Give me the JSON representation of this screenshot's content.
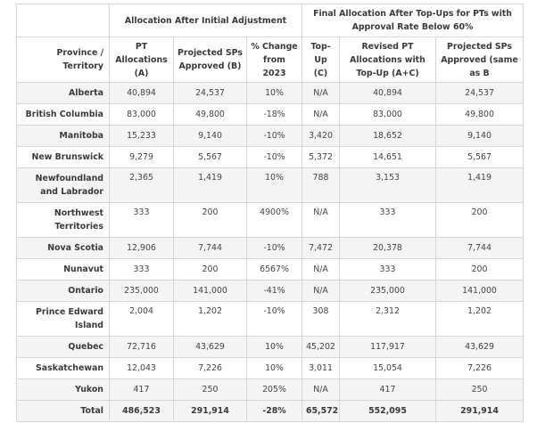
{
  "table": {
    "group_headers": {
      "initial": "Allocation After Initial Adjustment",
      "final": "Final Allocation After Top-Ups for PTs with Approval Rate Below 60%"
    },
    "columns": [
      "Province / Territory",
      "PT Allocations (A)",
      "Projected SPs Approved (B)",
      "% Change from 2023",
      "Top-Up (C)",
      "Revised PT Allocations with Top-Up (A+C)",
      "Projected SPs Approved (same as B"
    ],
    "rows": [
      {
        "province": "Alberta",
        "pt_alloc": "40,894",
        "projected": "24,537",
        "change": "10%",
        "topup": "N/A",
        "revised": "40,894",
        "projected_same": "24,537"
      },
      {
        "province": "British Columbia",
        "pt_alloc": "83,000",
        "projected": "49,800",
        "change": "-18%",
        "topup": "N/A",
        "revised": "83,000",
        "projected_same": "49,800"
      },
      {
        "province": "Manitoba",
        "pt_alloc": "15,233",
        "projected": "9,140",
        "change": "-10%",
        "topup": "3,420",
        "revised": "18,652",
        "projected_same": "9,140"
      },
      {
        "province": "New Brunswick",
        "pt_alloc": "9,279",
        "projected": "5,567",
        "change": "-10%",
        "topup": "5,372",
        "revised": "14,651",
        "projected_same": "5,567"
      },
      {
        "province": "Newfoundland and Labrador",
        "pt_alloc": "2,365",
        "projected": "1,419",
        "change": "10%",
        "topup": "788",
        "revised": "3,153",
        "projected_same": "1,419"
      },
      {
        "province": "Northwest Territories",
        "pt_alloc": "333",
        "projected": "200",
        "change": "4900%",
        "topup": "N/A",
        "revised": "333",
        "projected_same": "200"
      },
      {
        "province": "Nova Scotia",
        "pt_alloc": "12,906",
        "projected": "7,744",
        "change": "-10%",
        "topup": "7,472",
        "revised": "20,378",
        "projected_same": "7,744"
      },
      {
        "province": "Nunavut",
        "pt_alloc": "333",
        "projected": "200",
        "change": "6567%",
        "topup": "N/A",
        "revised": "333",
        "projected_same": "200"
      },
      {
        "province": "Ontario",
        "pt_alloc": "235,000",
        "projected": "141,000",
        "change": "-41%",
        "topup": "N/A",
        "revised": "235,000",
        "projected_same": "141,000"
      },
      {
        "province": "Prince Edward Island",
        "pt_alloc": "2,004",
        "projected": "1,202",
        "change": "-10%",
        "topup": "308",
        "revised": "2,312",
        "projected_same": "1,202"
      },
      {
        "province": "Quebec",
        "pt_alloc": "72,716",
        "projected": "43,629",
        "change": "10%",
        "topup": "45,202",
        "revised": "117,917",
        "projected_same": "43,629"
      },
      {
        "province": "Saskatchewan",
        "pt_alloc": "12,043",
        "projected": "7,226",
        "change": "10%",
        "topup": "3,011",
        "revised": "15,054",
        "projected_same": "7,226"
      },
      {
        "province": "Yukon",
        "pt_alloc": "417",
        "projected": "250",
        "change": "205%",
        "topup": "N/A",
        "revised": "417",
        "projected_same": "250"
      }
    ],
    "total": {
      "province": "Total",
      "pt_alloc": "486,523",
      "projected": "291,914",
      "change": "-28%",
      "topup": "65,572",
      "revised": "552,095",
      "projected_same": "291,914"
    }
  }
}
